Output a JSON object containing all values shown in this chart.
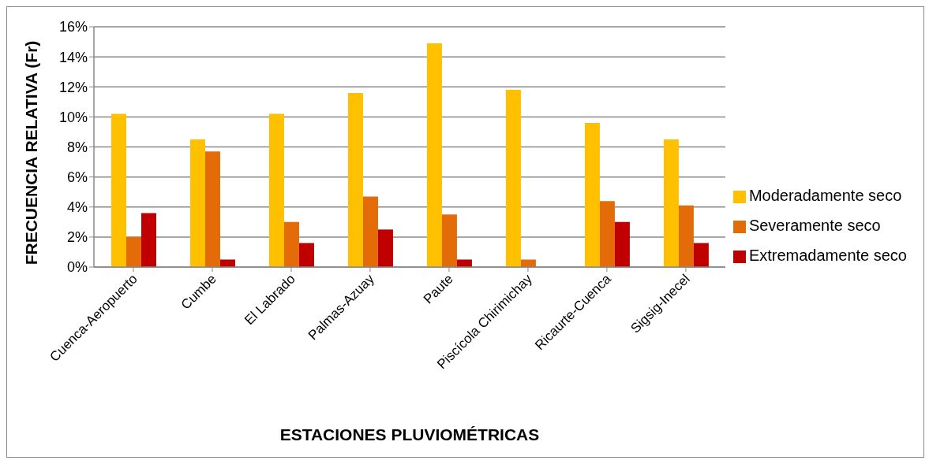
{
  "chart_data": {
    "type": "bar",
    "xlabel": "ESTACIONES PLUVIOMÉTRICAS",
    "ylabel": "FRECUENCIA RELATIVA (Fr)",
    "categories": [
      "Cuenca-Aeropuerto",
      "Cumbe",
      "El Labrado",
      "Palmas-Azuay",
      "Paute",
      "Piscícola Chirimichay",
      "Ricaurte-Cuenca",
      "Sigsig-Inecel"
    ],
    "series": [
      {
        "name": "Moderadamente seco",
        "color": "#ffc000",
        "values": [
          10.2,
          8.5,
          10.2,
          11.6,
          14.9,
          11.8,
          9.6,
          8.5
        ]
      },
      {
        "name": "Severamente seco",
        "color": "#e36c09",
        "values": [
          2.0,
          7.7,
          3.0,
          4.7,
          3.5,
          0.5,
          4.4,
          4.1
        ]
      },
      {
        "name": "Extremadamente seco",
        "color": "#c00000",
        "values": [
          3.6,
          0.5,
          1.6,
          2.5,
          0.5,
          0,
          3.0,
          1.6
        ]
      }
    ],
    "ylim": [
      0,
      16
    ],
    "yticks": [
      {
        "value": 0,
        "label": "0%"
      },
      {
        "value": 2,
        "label": "2%"
      },
      {
        "value": 4,
        "label": "4%"
      },
      {
        "value": 6,
        "label": "6%"
      },
      {
        "value": 8,
        "label": "8%"
      },
      {
        "value": 10,
        "label": "10%"
      },
      {
        "value": 12,
        "label": "12%"
      },
      {
        "value": 14,
        "label": "14%"
      },
      {
        "value": 16,
        "label": "16%"
      }
    ],
    "grid": "y",
    "legend": "right"
  }
}
